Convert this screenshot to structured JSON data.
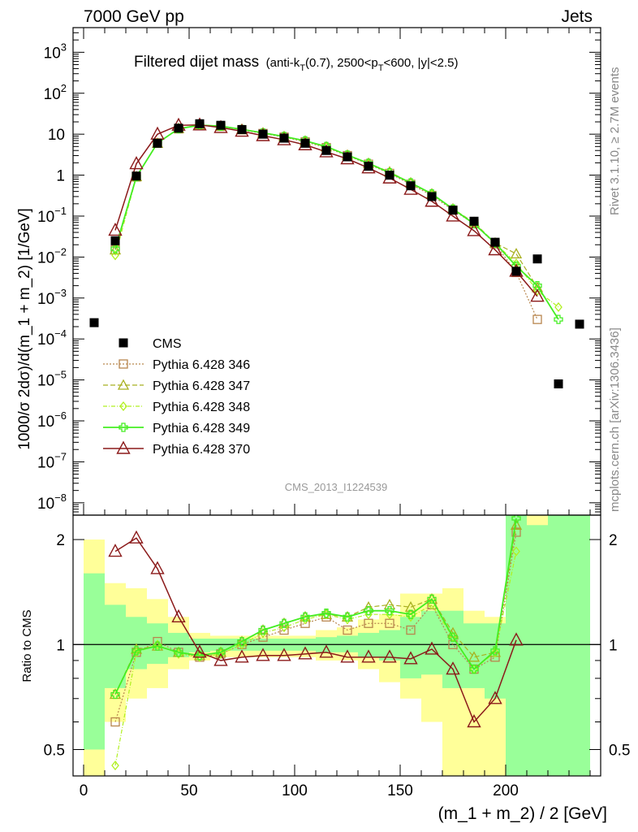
{
  "header": {
    "left": "7000 GeV pp",
    "right": "Jets"
  },
  "side_labels": {
    "rivet": "Rivet 3.1.10, ≥ 2.7M events",
    "mcplots": "mcplots.cern.ch [arXiv:1306.3436]"
  },
  "analysis_id": "CMS_2013_I1224539",
  "colors": {
    "band_outer": "#ffff99",
    "band_inner": "#99ff99",
    "cms": "#000000",
    "p346": "#b8864e",
    "p347": "#a8b020",
    "p348": "#b0f020",
    "p349": "#44ee22",
    "p370": "#8b1a1a"
  },
  "chart_data": [
    {
      "type": "line",
      "title_main": "Filtered dijet mass",
      "title_paren_1": "(anti-k",
      "title_sub_1": "T",
      "title_paren_2": "(0.7), 2500<p",
      "title_sub_2": "T",
      "title_paren_3": "<600, |y|<2.5)",
      "ylabel": "1000/σ 2dσ)/d(m_1 + m_2) [1/GeV]",
      "yscale": "log",
      "ylim": [
        5e-09,
        4000
      ],
      "xlim": [
        -5,
        245
      ],
      "y_ticks": [
        {
          "v": 1e-08,
          "base": "10",
          "exp": "−8"
        },
        {
          "v": 1e-07,
          "base": "10",
          "exp": "−7"
        },
        {
          "v": 1e-06,
          "base": "10",
          "exp": "−6"
        },
        {
          "v": 1e-05,
          "base": "10",
          "exp": "−5"
        },
        {
          "v": 0.0001,
          "base": "10",
          "exp": "−4"
        },
        {
          "v": 0.001,
          "base": "10",
          "exp": "−3"
        },
        {
          "v": 0.01,
          "base": "10",
          "exp": "−2"
        },
        {
          "v": 0.1,
          "base": "10",
          "exp": "−1"
        },
        {
          "v": 1,
          "base": "1",
          "exp": ""
        },
        {
          "v": 10,
          "base": "10",
          "exp": ""
        },
        {
          "v": 100,
          "base": "10",
          "exp": "2"
        },
        {
          "v": 1000,
          "base": "10",
          "exp": "3"
        }
      ],
      "x": [
        5,
        15,
        25,
        35,
        45,
        55,
        65,
        75,
        85,
        95,
        105,
        115,
        125,
        135,
        145,
        155,
        165,
        175,
        185,
        195,
        205,
        215,
        225,
        235
      ],
      "legend": {
        "placement": "bottom-left",
        "entries": [
          {
            "key": "cms",
            "label": "CMS"
          },
          {
            "key": "p346",
            "label": "Pythia 6.428 346"
          },
          {
            "key": "p347",
            "label": "Pythia 6.428 347"
          },
          {
            "key": "p348",
            "label": "Pythia 6.428 348"
          },
          {
            "key": "p349",
            "label": "Pythia 6.428 349"
          },
          {
            "key": "p370",
            "label": "Pythia 6.428 370"
          }
        ]
      },
      "data": {
        "x": [
          5,
          15,
          25,
          35,
          45,
          55,
          65,
          75,
          85,
          95,
          105,
          115,
          125,
          135,
          145,
          155,
          165,
          175,
          185,
          195,
          205,
          215,
          225,
          235
        ],
        "y": [
          0.00025,
          0.025,
          0.95,
          6.0,
          14.0,
          18.0,
          16.5,
          13.0,
          10.0,
          8.0,
          6.0,
          4.0,
          2.8,
          1.65,
          1.0,
          0.55,
          0.3,
          0.14,
          0.075,
          0.023,
          0.0045,
          0.009,
          8e-06,
          0.00023
        ]
      },
      "series": [
        {
          "key": "p346",
          "x": [
            15,
            25,
            35,
            45,
            55,
            65,
            75,
            85,
            95,
            105,
            115,
            125,
            135,
            145,
            155,
            165,
            175,
            185,
            195,
            205,
            215
          ],
          "y": [
            0.015,
            0.9,
            6.1,
            13.5,
            16.5,
            15.5,
            12.8,
            10.4,
            8.5,
            6.5,
            4.7,
            3.0,
            1.85,
            1.1,
            0.6,
            0.32,
            0.14,
            0.065,
            0.021,
            0.0042,
            0.0003
          ]
        },
        {
          "key": "p347",
          "x": [
            15,
            25,
            35,
            45,
            55,
            65,
            75,
            85,
            95,
            105,
            115,
            125,
            135,
            145,
            155,
            165,
            175,
            185,
            195,
            205,
            215
          ],
          "y": [
            0.015,
            0.92,
            6.0,
            13.8,
            16.8,
            15.8,
            13.2,
            10.8,
            8.8,
            6.8,
            4.9,
            3.1,
            1.95,
            1.2,
            0.65,
            0.35,
            0.15,
            0.07,
            0.022,
            0.012,
            0.0018
          ]
        },
        {
          "key": "p348",
          "x": [
            15,
            25,
            35,
            45,
            55,
            65,
            75,
            85,
            95,
            105,
            115,
            125,
            135,
            145,
            155,
            165,
            175,
            185,
            195,
            205,
            215,
            225
          ],
          "y": [
            0.011,
            0.9,
            6.0,
            13.5,
            16.5,
            15.6,
            13.0,
            10.7,
            8.7,
            6.8,
            4.9,
            3.1,
            1.9,
            1.15,
            0.65,
            0.34,
            0.15,
            0.065,
            0.022,
            0.007,
            0.0015,
            0.0006
          ]
        },
        {
          "key": "p349",
          "x": [
            15,
            25,
            35,
            45,
            55,
            65,
            75,
            85,
            95,
            105,
            115,
            125,
            135,
            145,
            155,
            165,
            175,
            185,
            195,
            205,
            215,
            225
          ],
          "y": [
            0.016,
            0.91,
            6.1,
            13.6,
            16.6,
            15.7,
            13.1,
            10.8,
            8.8,
            6.9,
            5.0,
            3.1,
            1.95,
            1.15,
            0.65,
            0.35,
            0.15,
            0.065,
            0.022,
            0.006,
            0.002,
            0.0003
          ]
        },
        {
          "key": "p370",
          "x": [
            15,
            25,
            35,
            45,
            55,
            65,
            75,
            85,
            95,
            105,
            115,
            125,
            135,
            145,
            155,
            165,
            175,
            185,
            195,
            205,
            215
          ],
          "y": [
            0.045,
            1.9,
            10.0,
            16.5,
            16.8,
            14.5,
            11.8,
            9.2,
            7.3,
            5.5,
            3.7,
            2.5,
            1.5,
            0.85,
            0.45,
            0.23,
            0.1,
            0.044,
            0.015,
            0.0045,
            0.0011
          ]
        }
      ]
    },
    {
      "type": "line",
      "ylabel": "Ratio to CMS",
      "xlabel": "(m_1 + m_2) / 2 [GeV]",
      "yscale": "log",
      "ylim": [
        0.42,
        2.35
      ],
      "xlim": [
        -5,
        245
      ],
      "reference_line": 1,
      "y_ticks": [
        {
          "v": 0.5,
          "label": "0.5"
        },
        {
          "v": 1,
          "label": "1"
        },
        {
          "v": 2,
          "label": "2"
        }
      ],
      "x_ticks": [
        {
          "v": 0,
          "label": "0"
        },
        {
          "v": 50,
          "label": "50"
        },
        {
          "v": 100,
          "label": "100"
        },
        {
          "v": 150,
          "label": "150"
        },
        {
          "v": 200,
          "label": "200"
        }
      ],
      "band_edges": [
        0,
        10,
        20,
        30,
        40,
        50,
        60,
        70,
        80,
        90,
        100,
        110,
        120,
        130,
        140,
        150,
        160,
        170,
        180,
        190,
        200,
        210,
        220,
        240
      ],
      "band_outer": [
        [
          0.35,
          2.0
        ],
        [
          0.6,
          1.5
        ],
        [
          0.7,
          1.45
        ],
        [
          0.75,
          1.35
        ],
        [
          0.85,
          1.2
        ],
        [
          0.9,
          1.08
        ],
        [
          0.92,
          1.06
        ],
        [
          0.92,
          1.06
        ],
        [
          0.92,
          1.06
        ],
        [
          0.92,
          1.06
        ],
        [
          0.92,
          1.06
        ],
        [
          0.9,
          1.1
        ],
        [
          0.9,
          1.12
        ],
        [
          0.85,
          1.18
        ],
        [
          0.78,
          1.22
        ],
        [
          0.7,
          1.4
        ],
        [
          0.6,
          1.4
        ],
        [
          0.4,
          1.45
        ],
        [
          0.4,
          1.25
        ],
        [
          0.3,
          1.2
        ],
        [
          0.3,
          2.35
        ],
        [
          0.3,
          2.35
        ],
        [
          0.3,
          2.35
        ]
      ],
      "band_inner": [
        [
          0.5,
          1.6
        ],
        [
          0.75,
          1.3
        ],
        [
          0.85,
          1.2
        ],
        [
          0.88,
          1.15
        ],
        [
          0.92,
          1.08
        ],
        [
          0.95,
          1.04
        ],
        [
          0.96,
          1.04
        ],
        [
          0.96,
          1.04
        ],
        [
          0.96,
          1.04
        ],
        [
          0.96,
          1.04
        ],
        [
          0.96,
          1.04
        ],
        [
          0.95,
          1.05
        ],
        [
          0.95,
          1.06
        ],
        [
          0.92,
          1.08
        ],
        [
          0.9,
          1.1
        ],
        [
          0.8,
          1.2
        ],
        [
          0.82,
          1.25
        ],
        [
          0.75,
          1.25
        ],
        [
          0.75,
          1.15
        ],
        [
          0.7,
          1.15
        ],
        [
          0.3,
          2.35
        ],
        [
          0.3,
          2.2
        ],
        [
          0.3,
          2.35
        ]
      ],
      "series": [
        {
          "key": "p346",
          "x": [
            15,
            25,
            35,
            45,
            55,
            65,
            75,
            85,
            95,
            105,
            115,
            125,
            135,
            145,
            155,
            165,
            175,
            185,
            195,
            205
          ],
          "y": [
            0.6,
            0.95,
            1.02,
            0.95,
            0.92,
            0.94,
            1.0,
            1.05,
            1.1,
            1.15,
            1.2,
            1.1,
            1.15,
            1.15,
            1.1,
            1.3,
            1.0,
            0.85,
            0.92,
            2.1
          ]
        },
        {
          "key": "p347",
          "x": [
            15,
            25,
            35,
            45,
            55,
            65,
            75,
            85,
            95,
            105,
            115,
            125,
            135,
            145,
            155,
            165,
            175,
            185,
            195,
            205
          ],
          "y": [
            0.72,
            0.97,
            0.99,
            0.95,
            0.93,
            0.95,
            1.02,
            1.1,
            1.15,
            1.2,
            1.22,
            1.2,
            1.28,
            1.3,
            1.28,
            1.35,
            1.08,
            0.92,
            0.95,
            2.2
          ]
        },
        {
          "key": "p348",
          "x": [
            15,
            25,
            35,
            45,
            55,
            65,
            75,
            85,
            95,
            105,
            115,
            125,
            135,
            145,
            155,
            165,
            175,
            185,
            195,
            205
          ],
          "y": [
            0.45,
            0.95,
            1.0,
            0.94,
            0.92,
            0.94,
            1.0,
            1.08,
            1.12,
            1.18,
            1.22,
            1.18,
            1.22,
            1.22,
            1.2,
            1.3,
            1.05,
            0.85,
            0.95,
            1.85
          ]
        },
        {
          "key": "p349",
          "x": [
            15,
            25,
            35,
            45,
            55,
            65,
            75,
            85,
            95,
            105,
            115,
            125,
            135,
            145,
            155,
            165,
            175,
            185,
            195,
            205
          ],
          "y": [
            0.72,
            0.96,
            0.99,
            0.95,
            0.93,
            0.95,
            1.02,
            1.1,
            1.15,
            1.2,
            1.23,
            1.2,
            1.25,
            1.25,
            1.22,
            1.35,
            1.05,
            0.85,
            0.96,
            2.3
          ]
        },
        {
          "key": "p370",
          "x": [
            15,
            25,
            35,
            45,
            55,
            65,
            75,
            85,
            95,
            105,
            115,
            125,
            135,
            145,
            155,
            165,
            175,
            185,
            195,
            205
          ],
          "y": [
            1.85,
            2.02,
            1.65,
            1.2,
            0.95,
            0.9,
            0.92,
            0.93,
            0.93,
            0.94,
            0.95,
            0.92,
            0.92,
            0.92,
            0.91,
            0.97,
            0.85,
            0.6,
            0.7,
            1.03
          ]
        }
      ]
    }
  ]
}
